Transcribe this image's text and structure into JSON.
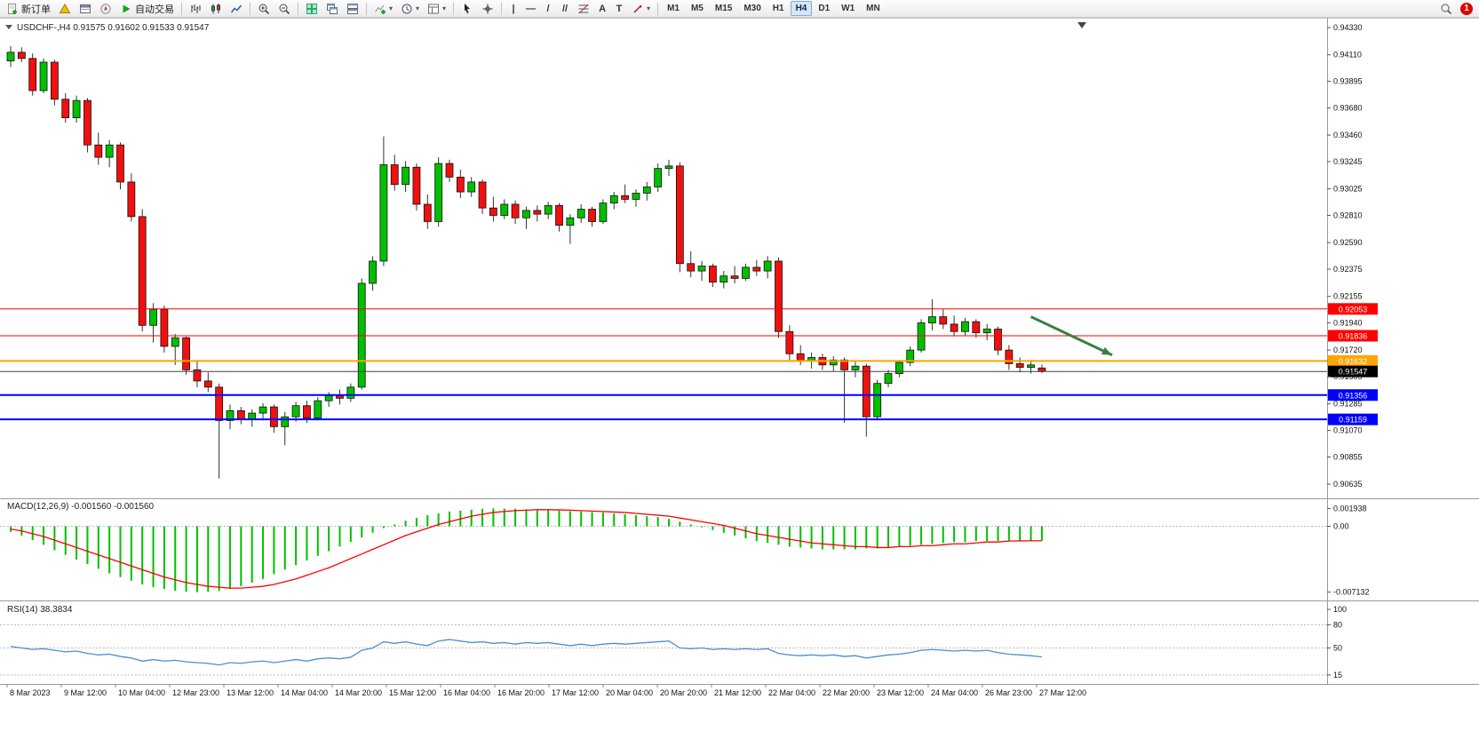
{
  "toolbar": {
    "new_order_label": "新订单",
    "autotrading_label": "自动交易",
    "timeframes": [
      "M1",
      "M5",
      "M15",
      "M30",
      "H1",
      "H4",
      "D1",
      "W1",
      "MN"
    ],
    "active_timeframe": "H4",
    "notification_badge": "1",
    "icons": {
      "dropdown_caret": "▾",
      "vertical_line": "|",
      "horizontal_line": "—",
      "trendline": "/",
      "channel": "//",
      "text_tool": "A",
      "label_tool": "T"
    }
  },
  "chart": {
    "symbol_label": "USDCHF-,H4",
    "ohlc_open": "0.91575",
    "ohlc_high": "0.91602",
    "ohlc_low": "0.91533",
    "ohlc_close": "0.91547"
  },
  "chart_data": [
    {
      "type": "candlestick",
      "title": "USDCHF-,H4",
      "timeframe": "H4",
      "up_color": "#00C000",
      "down_color": "#F01010",
      "wick_color": "#333333",
      "ylim": [
        0.90542,
        0.94395
      ],
      "y_ticks": [
        0.9433,
        0.9411,
        0.93895,
        0.9368,
        0.9346,
        0.93245,
        0.93025,
        0.9281,
        0.9259,
        0.92375,
        0.92155,
        0.9194,
        0.9172,
        0.91505,
        0.91285,
        0.9107,
        0.90855,
        0.90635
      ],
      "x_labels": [
        "8 Mar 2023",
        "9 Mar 12:00",
        "10 Mar 04:00",
        "12 Mar 23:00",
        "13 Mar 12:00",
        "14 Mar 04:00",
        "14 Mar 20:00",
        "15 Mar 12:00",
        "16 Mar 04:00",
        "16 Mar 20:00",
        "17 Mar 12:00",
        "20 Mar 04:00",
        "20 Mar 20:00",
        "21 Mar 12:00",
        "22 Mar 04:00",
        "22 Mar 20:00",
        "23 Mar 12:00",
        "24 Mar 04:00",
        "26 Mar 23:00",
        "27 Mar 12:00"
      ],
      "hlines": [
        {
          "price": 0.92053,
          "label": "0.92053",
          "color": "#FF0000",
          "width": 1
        },
        {
          "price": 0.91836,
          "label": "0.91836",
          "color": "#FF0000",
          "width": 1
        },
        {
          "price": 0.91632,
          "label": "0.91632",
          "color": "#FFA500",
          "width": 2
        },
        {
          "price": 0.91547,
          "label": "0.91547",
          "color": "#404040",
          "width": 1,
          "tag_color": "#000000",
          "role": "current-price"
        },
        {
          "price": 0.91356,
          "label": "0.91356",
          "color": "#0000FF",
          "width": 2
        },
        {
          "price": 0.91159,
          "label": "0.91159",
          "color": "#0000FF",
          "width": 2
        }
      ],
      "arrow": {
        "from_bar": 93,
        "from_price": 0.9199,
        "to_bar": 100.4,
        "to_price": 0.9168,
        "color": "#3a7d44"
      },
      "candles": [
        [
          0.9406,
          0.9418,
          0.9401,
          0.9413
        ],
        [
          0.9413,
          0.9417,
          0.9405,
          0.9408
        ],
        [
          0.9408,
          0.9412,
          0.9378,
          0.9382
        ],
        [
          0.9382,
          0.9408,
          0.938,
          0.9405
        ],
        [
          0.9405,
          0.9407,
          0.937,
          0.9375
        ],
        [
          0.9375,
          0.938,
          0.9356,
          0.936
        ],
        [
          0.936,
          0.9378,
          0.9356,
          0.9374
        ],
        [
          0.9374,
          0.9376,
          0.9332,
          0.9338
        ],
        [
          0.9338,
          0.9348,
          0.9322,
          0.9328
        ],
        [
          0.9328,
          0.9342,
          0.932,
          0.9338
        ],
        [
          0.9338,
          0.934,
          0.9302,
          0.9308
        ],
        [
          0.9308,
          0.9315,
          0.9276,
          0.928
        ],
        [
          0.928,
          0.9286,
          0.9187,
          0.9192
        ],
        [
          0.9192,
          0.921,
          0.9178,
          0.9205
        ],
        [
          0.9205,
          0.9208,
          0.917,
          0.9175
        ],
        [
          0.9175,
          0.9185,
          0.916,
          0.9182
        ],
        [
          0.9182,
          0.9183,
          0.9152,
          0.9156
        ],
        [
          0.9156,
          0.9164,
          0.9142,
          0.9147
        ],
        [
          0.9147,
          0.9154,
          0.9138,
          0.9142
        ],
        [
          0.9142,
          0.9145,
          0.9068,
          0.9115
        ],
        [
          0.9115,
          0.9128,
          0.9108,
          0.9123
        ],
        [
          0.9123,
          0.9126,
          0.9112,
          0.9116
        ],
        [
          0.9116,
          0.9124,
          0.911,
          0.9121
        ],
        [
          0.9121,
          0.9129,
          0.9115,
          0.9126
        ],
        [
          0.9126,
          0.9128,
          0.9105,
          0.911
        ],
        [
          0.911,
          0.9122,
          0.9095,
          0.9118
        ],
        [
          0.9118,
          0.913,
          0.9114,
          0.9127
        ],
        [
          0.9127,
          0.9131,
          0.9113,
          0.9117
        ],
        [
          0.9117,
          0.9134,
          0.9115,
          0.9131
        ],
        [
          0.9131,
          0.9138,
          0.9126,
          0.9135
        ],
        [
          0.9135,
          0.914,
          0.9128,
          0.9133
        ],
        [
          0.9133,
          0.9145,
          0.913,
          0.9142
        ],
        [
          0.9142,
          0.923,
          0.914,
          0.9226
        ],
        [
          0.9226,
          0.9248,
          0.922,
          0.9244
        ],
        [
          0.9244,
          0.9345,
          0.924,
          0.9322
        ],
        [
          0.9322,
          0.933,
          0.9301,
          0.9306
        ],
        [
          0.9306,
          0.9325,
          0.93,
          0.932
        ],
        [
          0.932,
          0.9323,
          0.9285,
          0.929
        ],
        [
          0.929,
          0.9298,
          0.927,
          0.9276
        ],
        [
          0.9276,
          0.9328,
          0.9272,
          0.9323
        ],
        [
          0.9323,
          0.9326,
          0.9308,
          0.9312
        ],
        [
          0.9312,
          0.9318,
          0.9295,
          0.93
        ],
        [
          0.93,
          0.9312,
          0.9296,
          0.9308
        ],
        [
          0.9308,
          0.931,
          0.9282,
          0.9287
        ],
        [
          0.9287,
          0.9296,
          0.9276,
          0.9281
        ],
        [
          0.9281,
          0.9294,
          0.9278,
          0.929
        ],
        [
          0.929,
          0.9293,
          0.9274,
          0.9279
        ],
        [
          0.9279,
          0.9288,
          0.927,
          0.9285
        ],
        [
          0.9285,
          0.9289,
          0.9276,
          0.9282
        ],
        [
          0.9282,
          0.9292,
          0.9278,
          0.9289
        ],
        [
          0.9289,
          0.9291,
          0.9268,
          0.9273
        ],
        [
          0.9273,
          0.9282,
          0.9258,
          0.9279
        ],
        [
          0.9279,
          0.929,
          0.9275,
          0.9286
        ],
        [
          0.9286,
          0.9288,
          0.9272,
          0.9276
        ],
        [
          0.9276,
          0.9294,
          0.9274,
          0.9291
        ],
        [
          0.9291,
          0.93,
          0.9286,
          0.9297
        ],
        [
          0.9297,
          0.9306,
          0.9291,
          0.9294
        ],
        [
          0.9294,
          0.9302,
          0.9288,
          0.9299
        ],
        [
          0.9299,
          0.9308,
          0.9293,
          0.9304
        ],
        [
          0.9304,
          0.9323,
          0.93,
          0.9319
        ],
        [
          0.9319,
          0.9326,
          0.9313,
          0.9321
        ],
        [
          0.9321,
          0.9324,
          0.9235,
          0.9242
        ],
        [
          0.9242,
          0.9252,
          0.9231,
          0.9236
        ],
        [
          0.9236,
          0.9244,
          0.9228,
          0.924
        ],
        [
          0.924,
          0.9242,
          0.9223,
          0.9227
        ],
        [
          0.9227,
          0.9236,
          0.9222,
          0.9232
        ],
        [
          0.9232,
          0.924,
          0.9226,
          0.923
        ],
        [
          0.923,
          0.9242,
          0.9228,
          0.9239
        ],
        [
          0.9239,
          0.9245,
          0.9232,
          0.9236
        ],
        [
          0.9236,
          0.9248,
          0.923,
          0.9244
        ],
        [
          0.9244,
          0.9247,
          0.9182,
          0.9187
        ],
        [
          0.9187,
          0.9192,
          0.9164,
          0.9169
        ],
        [
          0.9169,
          0.9176,
          0.916,
          0.9163
        ],
        [
          0.9163,
          0.917,
          0.9157,
          0.9166
        ],
        [
          0.9166,
          0.9169,
          0.9156,
          0.916
        ],
        [
          0.916,
          0.9167,
          0.9155,
          0.9164
        ],
        [
          0.9164,
          0.9166,
          0.9113,
          0.9156
        ],
        [
          0.9156,
          0.9163,
          0.915,
          0.9159
        ],
        [
          0.9159,
          0.9161,
          0.9102,
          0.9118
        ],
        [
          0.9118,
          0.9148,
          0.9115,
          0.9145
        ],
        [
          0.9145,
          0.9156,
          0.9142,
          0.9153
        ],
        [
          0.9153,
          0.9164,
          0.915,
          0.9162
        ],
        [
          0.9162,
          0.9175,
          0.9159,
          0.9172
        ],
        [
          0.9172,
          0.9197,
          0.917,
          0.9194
        ],
        [
          0.9194,
          0.9213,
          0.9188,
          0.9199
        ],
        [
          0.9199,
          0.9205,
          0.9189,
          0.9193
        ],
        [
          0.9193,
          0.92,
          0.9183,
          0.9187
        ],
        [
          0.9187,
          0.9198,
          0.9184,
          0.9195
        ],
        [
          0.9195,
          0.9197,
          0.9182,
          0.9186
        ],
        [
          0.9186,
          0.9193,
          0.918,
          0.9189
        ],
        [
          0.9189,
          0.9191,
          0.9168,
          0.9172
        ],
        [
          0.9172,
          0.9176,
          0.9156,
          0.9161
        ],
        [
          0.9161,
          0.9166,
          0.9154,
          0.9158
        ],
        [
          0.9158,
          0.9164,
          0.9153,
          0.916
        ],
        [
          0.91575,
          0.91602,
          0.91533,
          0.91547
        ]
      ]
    },
    {
      "type": "bar",
      "name": "MACD(12,26,9)",
      "values_label": "-0.001560 -0.001560",
      "histogram_color": "#00C000",
      "signal_color": "#FF0000",
      "ylim": [
        -0.00765,
        0.00265
      ],
      "y_ticks": [
        {
          "value": 0.001938,
          "label": "0.001938"
        },
        {
          "value": 0,
          "label": "0.00"
        },
        {
          "value": -0.007132,
          "label": "-0.007132"
        }
      ],
      "histogram": [
        -0.0006,
        -0.001,
        -0.0015,
        -0.002,
        -0.0026,
        -0.0031,
        -0.0036,
        -0.0041,
        -0.0046,
        -0.0051,
        -0.0055,
        -0.0059,
        -0.0063,
        -0.0066,
        -0.0068,
        -0.007,
        -0.0071,
        -0.00713,
        -0.0071,
        -0.007,
        -0.0068,
        -0.0065,
        -0.0061,
        -0.0057,
        -0.0052,
        -0.0047,
        -0.0042,
        -0.0037,
        -0.0032,
        -0.0027,
        -0.0022,
        -0.0017,
        -0.0012,
        -0.0007,
        -0.0002,
        0.0002,
        0.0006,
        0.0009,
        0.0012,
        0.0014,
        0.0016,
        0.0017,
        0.0018,
        0.0019,
        0.00194,
        0.00192,
        0.0019,
        0.00185,
        0.0018,
        0.00175,
        0.0017,
        0.00165,
        0.0016,
        0.00155,
        0.0015,
        0.0014,
        0.0013,
        0.0012,
        0.0011,
        0.001,
        0.0008,
        0.0005,
        0.0002,
        -0.0001,
        -0.0004,
        -0.0007,
        -0.001,
        -0.0013,
        -0.0016,
        -0.0018,
        -0.002,
        -0.0022,
        -0.0023,
        -0.0024,
        -0.0025,
        -0.0025,
        -0.0025,
        -0.0025,
        -0.0024,
        -0.0024,
        -0.0023,
        -0.0022,
        -0.0021,
        -0.002,
        -0.0019,
        -0.0018,
        -0.0017,
        -0.0017,
        -0.0016,
        -0.0016,
        -0.00158,
        -0.00157,
        -0.00156,
        -0.00156,
        -0.00156
      ],
      "signal": [
        -0.0003,
        -0.0005,
        -0.0008,
        -0.0011,
        -0.0015,
        -0.0019,
        -0.0023,
        -0.0027,
        -0.0031,
        -0.0035,
        -0.0039,
        -0.0043,
        -0.0047,
        -0.0051,
        -0.0055,
        -0.0058,
        -0.0061,
        -0.0063,
        -0.0065,
        -0.0066,
        -0.0067,
        -0.0067,
        -0.0066,
        -0.0065,
        -0.0063,
        -0.006,
        -0.0057,
        -0.0053,
        -0.0049,
        -0.0045,
        -0.004,
        -0.0035,
        -0.003,
        -0.0025,
        -0.002,
        -0.0015,
        -0.001,
        -0.0006,
        -0.0002,
        0.0002,
        0.0005,
        0.0008,
        0.0011,
        0.0013,
        0.0015,
        0.0016,
        0.0017,
        0.00175,
        0.0018,
        0.0018,
        0.00178,
        0.00175,
        0.0017,
        0.00165,
        0.0016,
        0.00155,
        0.0015,
        0.0014,
        0.0013,
        0.0012,
        0.0011,
        0.0009,
        0.0007,
        0.0005,
        0.0003,
        0.0001,
        -0.0002,
        -0.0005,
        -0.0008,
        -0.001,
        -0.0012,
        -0.0014,
        -0.0016,
        -0.0018,
        -0.0019,
        -0.002,
        -0.0021,
        -0.0022,
        -0.0022,
        -0.0023,
        -0.0023,
        -0.0022,
        -0.0022,
        -0.0021,
        -0.0021,
        -0.002,
        -0.0019,
        -0.0019,
        -0.0018,
        -0.0017,
        -0.0017,
        -0.0016,
        -0.00158,
        -0.00157,
        -0.00156
      ]
    },
    {
      "type": "line",
      "name": "RSI(14)",
      "value_label": "38.3834",
      "line_color": "#4A90D2",
      "ylim": [
        8,
        107
      ],
      "levels": [
        80,
        50,
        15
      ],
      "y_ticks": [
        {
          "value": 100,
          "label": "100"
        },
        {
          "value": 80,
          "label": "80"
        },
        {
          "value": 50,
          "label": "50"
        },
        {
          "value": 15,
          "label": "15"
        }
      ],
      "values": [
        52,
        50,
        48,
        49,
        47,
        45,
        46,
        43,
        41,
        42,
        39,
        37,
        33,
        35,
        33,
        34,
        32,
        31,
        30,
        28,
        31,
        30,
        32,
        33,
        31,
        33,
        35,
        33,
        36,
        37,
        36,
        38,
        47,
        50,
        58,
        56,
        58,
        55,
        53,
        59,
        61,
        59,
        57,
        58,
        56,
        57,
        55,
        57,
        56,
        57,
        55,
        53,
        55,
        53,
        55,
        56,
        55,
        56,
        57,
        58,
        59,
        50,
        49,
        50,
        48,
        49,
        48,
        49,
        48,
        49,
        43,
        41,
        40,
        41,
        40,
        41,
        39,
        40,
        37,
        39,
        41,
        42,
        44,
        47,
        48,
        47,
        46,
        47,
        46,
        47,
        44,
        42,
        41,
        40,
        38.38
      ]
    }
  ]
}
